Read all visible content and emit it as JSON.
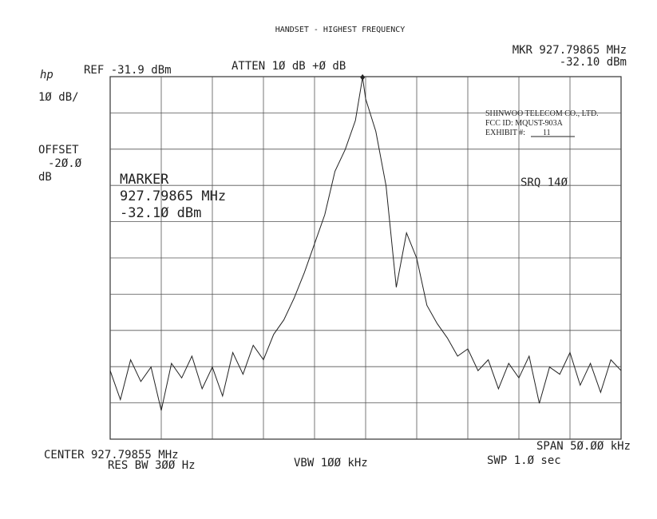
{
  "chart_data": {
    "type": "line",
    "title": "HANDSET - HIGHEST FREQUENCY",
    "annotations": {
      "logo": "hp",
      "mkr_freq": "MKR 927.79865 MHz",
      "mkr_level": "-32.10 dBm",
      "ref": "REF -31.9 dBm",
      "atten": "ATTEN 1Ø dB +Ø dB",
      "scale": "1Ø dB/",
      "offset": "OFFSET",
      "offset_value": "-2Ø.Ø",
      "offset_unit": "dB",
      "marker": "MARKER",
      "marker_freq": "927.79865 MHz",
      "marker_level": "-32.1Ø dBm",
      "srq": "SRQ 14Ø",
      "center": "CENTER 927.79855 MHz",
      "res_bw": "RES BW 3ØØ Hz",
      "vbw": "VBW 1ØØ kHz",
      "span": "SPAN 5Ø.ØØ kHz",
      "swp": "SWP 1.Ø  sec"
    },
    "stamp": [
      "SHINWOO TELECOM CO., LTD.",
      "FCC ID:  MQUST-903A",
      "EXHIBIT #:",
      "11"
    ],
    "x": [
      -25,
      -24,
      -23,
      -22,
      -21,
      -20,
      -19,
      -18,
      -17,
      -16,
      -15,
      -14,
      -13,
      -12,
      -11,
      -10,
      -9,
      -8,
      -7,
      -6,
      -5,
      -4,
      -3,
      -2,
      -1,
      -0.3,
      0,
      1,
      2,
      3,
      4,
      5,
      6,
      7,
      8,
      9,
      10,
      11,
      12,
      13,
      14,
      15,
      16,
      17,
      18,
      19,
      20,
      21,
      22,
      23,
      24,
      25
    ],
    "values": [
      -113,
      -121,
      -110,
      -116,
      -112,
      -124,
      -111,
      -115,
      -109,
      -118,
      -112,
      -120,
      -108,
      -114,
      -106,
      -110,
      -103,
      -99,
      -93,
      -86,
      -78,
      -70,
      -58,
      -52,
      -44,
      -32.1,
      -38,
      -47,
      -62,
      -90,
      -75,
      -82,
      -95,
      -100,
      -104,
      -109,
      -107,
      -113,
      -110,
      -118,
      -111,
      -115,
      -109,
      -122,
      -112,
      -114,
      -108,
      -117,
      -111,
      -119,
      -110,
      -113
    ],
    "color": "#222222",
    "marker_index": 25,
    "xlim": [
      -25,
      25
    ],
    "ylim": [
      -131.9,
      -31.9
    ],
    "grid": {
      "x_divisions": 10,
      "y_divisions": 10
    }
  }
}
